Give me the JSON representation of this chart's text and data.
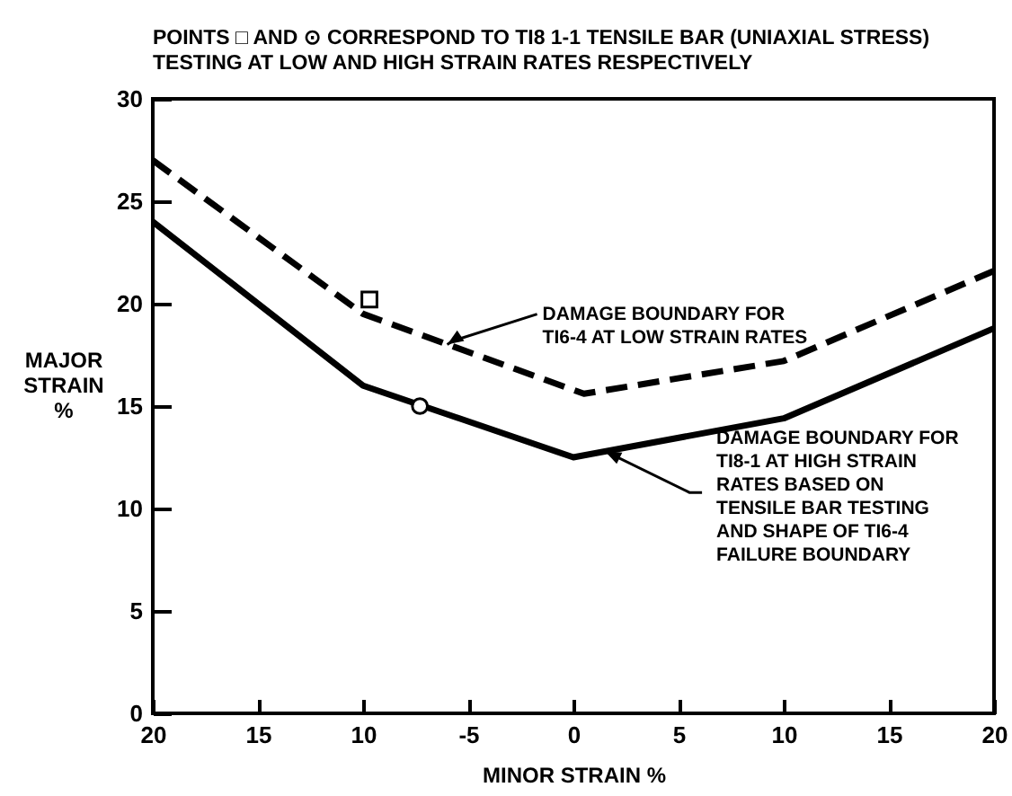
{
  "chart_data": {
    "type": "line",
    "title": "POINTS □ AND ⊙ CORRESPOND TO TI8 1-1 TENSILE BAR (UNIAXIAL STRESS)\nTESTING AT LOW AND HIGH STRAIN RATES  RESPECTIVELY",
    "xlabel": "MINOR STRAIN  %",
    "ylabel": "MAJOR\nSTRAIN\n%",
    "xlim": [
      -20,
      20
    ],
    "xticks": [
      {
        "value": -20,
        "label": "20"
      },
      {
        "value": -15,
        "label": "15"
      },
      {
        "value": -10,
        "label": "10"
      },
      -5,
      0,
      5,
      10,
      15,
      20
    ],
    "ylim": [
      0,
      30
    ],
    "yticks": [
      0,
      5,
      10,
      15,
      20,
      25,
      30
    ],
    "series": [
      {
        "color": "#000000",
        "line_style": "dashed",
        "x": [
          -20,
          -10,
          0.5,
          10,
          20
        ],
        "values": [
          27,
          19.5,
          15.6,
          17.2,
          21.6
        ]
      },
      {
        "color": "#000000",
        "line_style": "solid",
        "x": [
          -20,
          -10,
          0,
          10,
          20
        ],
        "values": [
          24,
          16,
          12.5,
          14.4,
          18.8
        ]
      },
      {
        "type": "scatter",
        "marker": "square",
        "color": "#000000",
        "x": [
          -9.7
        ],
        "values": [
          20.2
        ]
      },
      {
        "type": "scatter",
        "marker": "circle",
        "color": "#000000",
        "x": [
          -7.3
        ],
        "values": [
          15
        ]
      }
    ],
    "annotations": [
      {
        "text": "DAMAGE BOUNDARY FOR\nTI6-4 AT LOW STRAIN RATES",
        "x": -6,
        "y": 18
      },
      {
        "text": "DAMAGE BOUNDARY FOR\nTI8-1 AT HIGH STRAIN\nRATES BASED ON\nTENSILE BAR TESTING\nAND SHAPE OF TI6-4\nFAILURE BOUNDARY",
        "x": 1.5,
        "y": 12.8
      }
    ]
  }
}
